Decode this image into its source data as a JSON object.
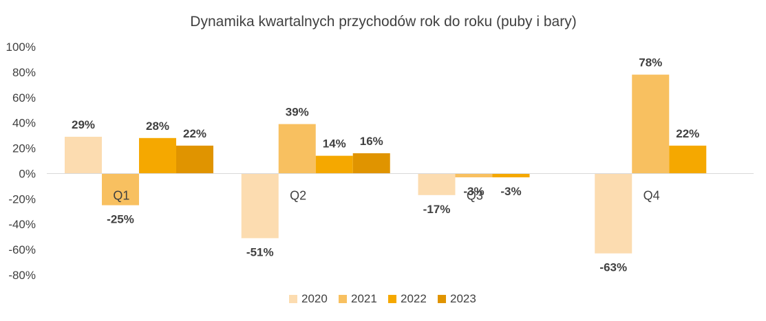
{
  "chart_data": {
    "type": "bar",
    "title": "Dynamika kwartalnych przychodów rok do roku (puby i bary)",
    "categories": [
      "Q1",
      "Q2",
      "Q3",
      "Q4"
    ],
    "series": [
      {
        "name": "2020",
        "color": "#FCDCB0",
        "values": [
          29,
          -51,
          -17,
          -63
        ],
        "labels": [
          "29%",
          "-51%",
          "-17%",
          "-63%"
        ]
      },
      {
        "name": "2021",
        "color": "#F8C060",
        "values": [
          -25,
          39,
          -3,
          78
        ],
        "labels": [
          "-25%",
          "39%",
          "-3%",
          "78%"
        ]
      },
      {
        "name": "2022",
        "color": "#F5A800",
        "values": [
          28,
          14,
          -3,
          22
        ],
        "labels": [
          "28%",
          "14%",
          "-3%",
          "22%"
        ]
      },
      {
        "name": "2023",
        "color": "#E09400",
        "values": [
          22,
          16,
          null,
          null
        ],
        "labels": [
          "22%",
          "16%",
          "",
          ""
        ]
      }
    ],
    "yticks": [
      "100%",
      "80%",
      "60%",
      "40%",
      "20%",
      "0%",
      "-20%",
      "-40%",
      "-60%",
      "-80%"
    ],
    "ylim": [
      -80,
      100
    ],
    "xlabel": "",
    "ylabel": "",
    "grid": false,
    "legend_position": "bottom"
  }
}
